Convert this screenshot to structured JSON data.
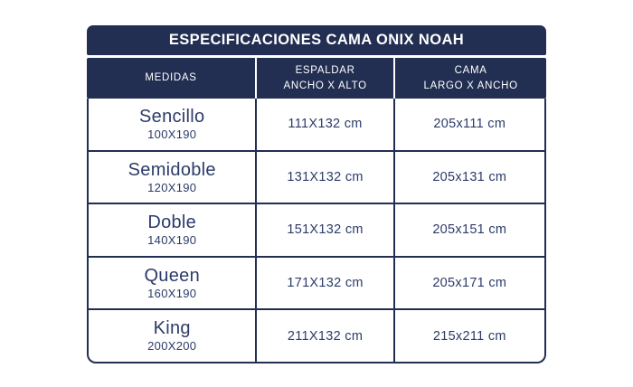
{
  "page": {
    "background": "#ffffff"
  },
  "table": {
    "title": "ESPECIFICACIONES CAMA ONIX NOAH",
    "colors": {
      "navy": "#222e52",
      "header_text": "#ffffff",
      "body_text": "#2c3b69",
      "row_background": "#ffffff"
    },
    "columns": [
      {
        "line1": "MEDIDAS",
        "line2": ""
      },
      {
        "line1": "ESPALDAR",
        "line2": "ANCHO X ALTO"
      },
      {
        "line1": "CAMA",
        "line2": "LARGO X ANCHO"
      }
    ],
    "rows": [
      {
        "name": "Sencillo",
        "size": "100X190",
        "espaldar": "111X132 cm",
        "cama": "205x111 cm"
      },
      {
        "name": "Semidoble",
        "size": "120X190",
        "espaldar": "131X132 cm",
        "cama": "205x131 cm"
      },
      {
        "name": "Doble",
        "size": "140X190",
        "espaldar": "151X132 cm",
        "cama": "205x151 cm"
      },
      {
        "name": "Queen",
        "size": "160X190",
        "espaldar": "171X132 cm",
        "cama": "205x171 cm"
      },
      {
        "name": "King",
        "size": "200X200",
        "espaldar": "211X132 cm",
        "cama": "215x211 cm"
      }
    ]
  },
  "chart_data": {
    "type": "table",
    "title": "ESPECIFICACIONES CAMA ONIX NOAH",
    "columns": [
      "MEDIDAS",
      "ESPALDAR ANCHO X ALTO",
      "CAMA LARGO X ANCHO"
    ],
    "rows": [
      [
        "Sencillo 100X190",
        "111X132 cm",
        "205x111 cm"
      ],
      [
        "Semidoble 120X190",
        "131X132 cm",
        "205x131 cm"
      ],
      [
        "Doble 140X190",
        "151X132 cm",
        "205x151 cm"
      ],
      [
        "Queen 160X190",
        "171X132 cm",
        "205x171 cm"
      ],
      [
        "King 200X200",
        "211X132 cm",
        "215x211 cm"
      ]
    ]
  }
}
